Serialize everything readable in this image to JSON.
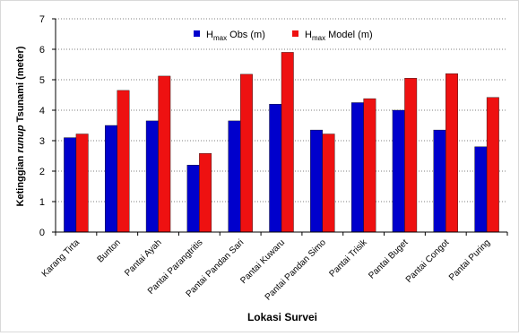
{
  "chart_data": {
    "type": "bar",
    "title": "",
    "xlabel": "Lokasi Survei",
    "ylabel_parts": [
      "Ketinggian ",
      "runup",
      " Tsunami  (meter)"
    ],
    "ylim": [
      0,
      7
    ],
    "yticks": [
      "0",
      "1",
      "2",
      "3",
      "4",
      "5",
      "6",
      "7"
    ],
    "grid": "horizontal",
    "legend_position": "top",
    "categories": [
      "Karang Tirta",
      "Bunton",
      "Pantai Ayah",
      "Pantai Parangtritis",
      "Pantai Pandan Sari",
      "Pantai Kuwaru",
      "Pantai Pandan Simo",
      "Pantai Trisik",
      "Pantai Buget",
      "Pantai Congot",
      "Pantai Puring"
    ],
    "series": [
      {
        "name_main": "H",
        "name_sub": "max",
        "name_rest": " Obs (m)",
        "color": "#0000cc",
        "values": [
          3.1,
          3.5,
          3.65,
          2.2,
          3.65,
          4.2,
          3.35,
          4.25,
          4.0,
          3.35,
          2.8
        ]
      },
      {
        "name_main": "H",
        "name_sub": "max",
        "name_rest": " Model (m)",
        "color": "#ee1111",
        "values": [
          3.22,
          4.65,
          5.12,
          2.58,
          5.18,
          5.9,
          3.22,
          4.38,
          5.05,
          5.2,
          4.42
        ]
      }
    ]
  }
}
